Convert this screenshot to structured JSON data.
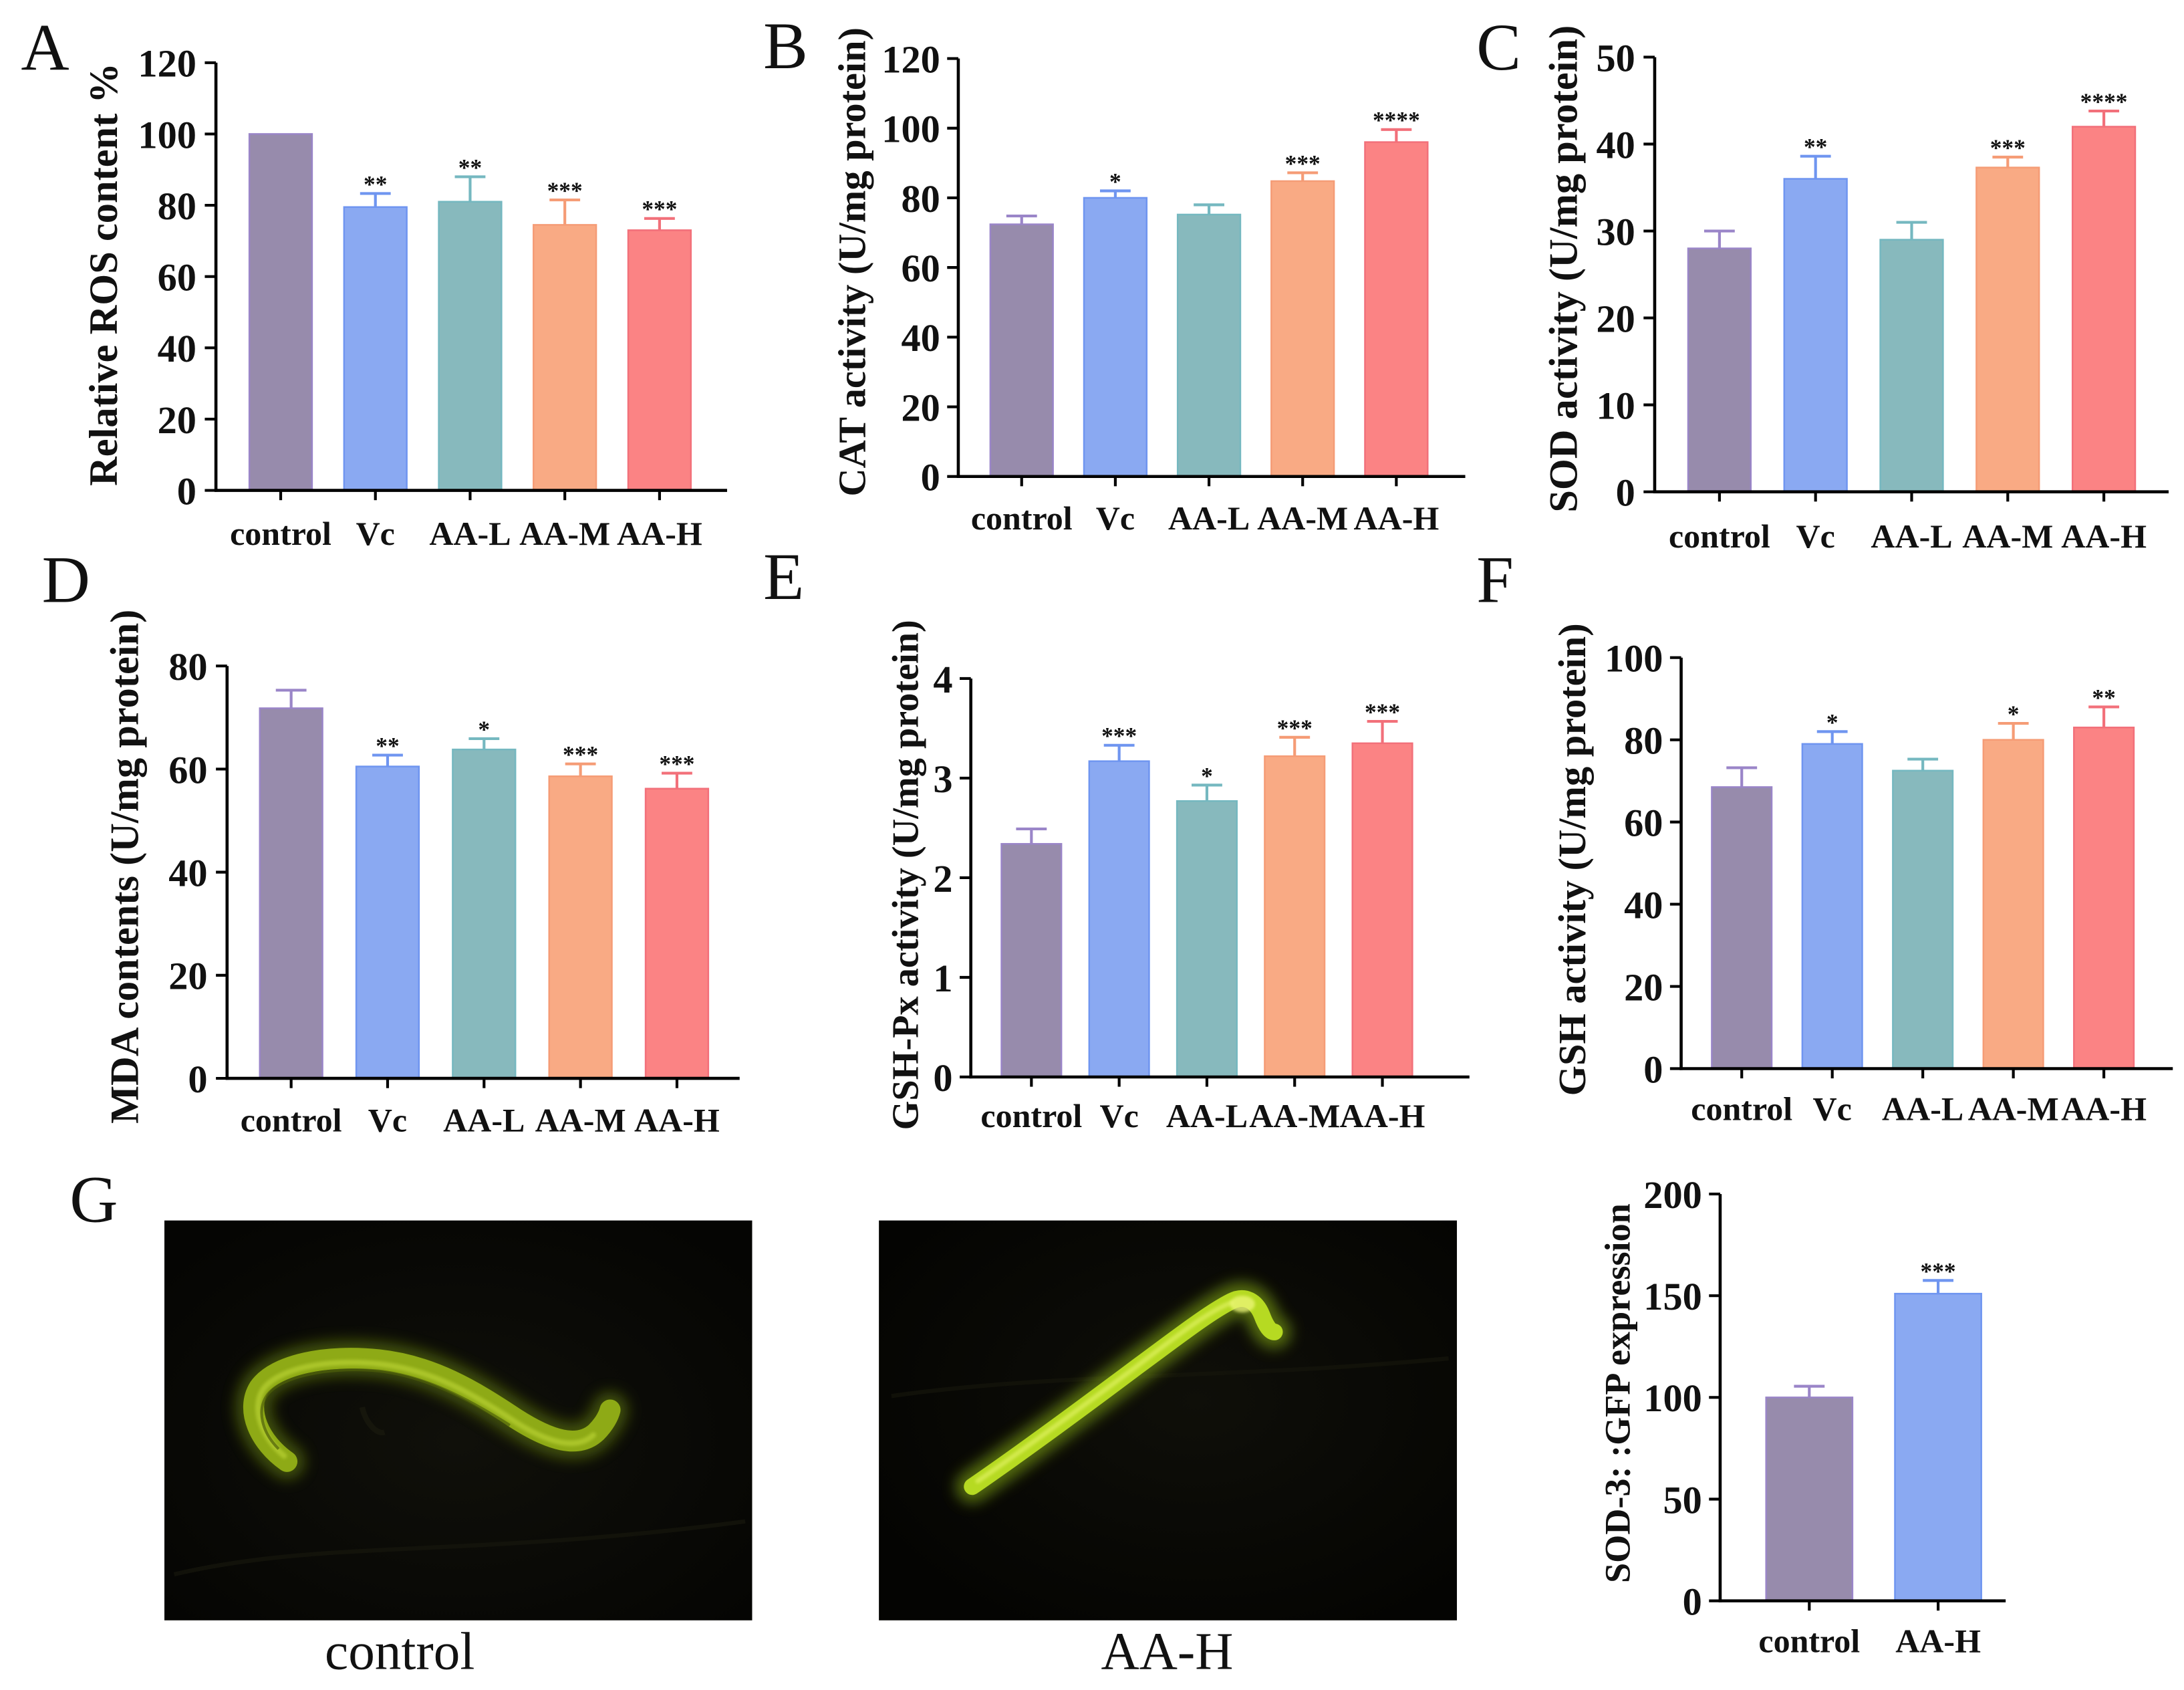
{
  "chart_data": [
    {
      "panel": "A",
      "type": "bar",
      "categories": [
        "control",
        "Vc",
        "AA-L",
        "AA-M",
        "AA-H"
      ],
      "values": [
        100,
        79.5,
        81,
        74.5,
        73
      ],
      "errors": [
        0,
        3.8,
        7,
        7,
        3.3
      ],
      "significance": [
        null,
        "**",
        "**",
        "***",
        "***"
      ],
      "ylabel": "Relative ROS content %",
      "ylim": [
        0,
        120
      ],
      "yticks": [
        0,
        20,
        40,
        60,
        80,
        100,
        120
      ],
      "colors": [
        "#978BAC",
        "#8AA9F2",
        "#87B9BD",
        "#F9AA84",
        "#FB8384"
      ],
      "error_colors": [
        "#9A85C8",
        "#6F95F0",
        "#75B8C0",
        "#F59C76",
        "#F2707A"
      ]
    },
    {
      "panel": "B",
      "type": "bar",
      "categories": [
        "control",
        "Vc",
        "AA-L",
        "AA-M",
        "AA-H"
      ],
      "values": [
        72.4,
        80,
        75.2,
        84.8,
        96
      ],
      "errors": [
        2.4,
        2,
        2.8,
        2.4,
        3.6
      ],
      "significance": [
        null,
        "*",
        null,
        "***",
        "****"
      ],
      "ylabel": "CAT activity (U/mg protein)",
      "ylim": [
        0,
        120
      ],
      "yticks": [
        0,
        20,
        40,
        60,
        80,
        100,
        120
      ],
      "colors": [
        "#978BAC",
        "#8AA9F2",
        "#87B9BD",
        "#F9AA84",
        "#FB8384"
      ],
      "error_colors": [
        "#9A85C8",
        "#6F95F0",
        "#75B8C0",
        "#F59C76",
        "#F2707A"
      ]
    },
    {
      "panel": "C",
      "type": "bar",
      "categories": [
        "control",
        "Vc",
        "AA-L",
        "AA-M",
        "AA-H"
      ],
      "values": [
        28,
        36,
        29,
        37.3,
        42
      ],
      "errors": [
        2,
        2.6,
        2,
        1.2,
        1.8
      ],
      "significance": [
        null,
        "**",
        null,
        "***",
        "****"
      ],
      "ylabel": "SOD activity (U/mg protein)",
      "ylim": [
        0,
        50
      ],
      "yticks": [
        0,
        10,
        20,
        30,
        40,
        50
      ],
      "colors": [
        "#978BAC",
        "#8AA9F2",
        "#87B9BD",
        "#F9AA84",
        "#FB8384"
      ],
      "error_colors": [
        "#9A85C8",
        "#6F95F0",
        "#75B8C0",
        "#F59C76",
        "#F2707A"
      ]
    },
    {
      "panel": "D",
      "type": "bar",
      "categories": [
        "control",
        "Vc",
        "AA-L",
        "AA-M",
        "AA-H"
      ],
      "values": [
        71.8,
        60.5,
        63.8,
        58.6,
        56.2
      ],
      "errors": [
        3.5,
        2.2,
        2.1,
        2.4,
        3
      ],
      "significance": [
        null,
        "**",
        "*",
        "***",
        "***"
      ],
      "ylabel": "MDA contents (U/mg protein)",
      "ylim": [
        0,
        80
      ],
      "yticks": [
        0,
        20,
        40,
        60,
        80
      ],
      "colors": [
        "#978BAC",
        "#8AA9F2",
        "#87B9BD",
        "#F9AA84",
        "#FB8384"
      ],
      "error_colors": [
        "#9A85C8",
        "#6F95F0",
        "#75B8C0",
        "#F59C76",
        "#F2707A"
      ]
    },
    {
      "panel": "E",
      "type": "bar",
      "categories": [
        "control",
        "Vc",
        "AA-L",
        "AA-M",
        "AA-H"
      ],
      "values": [
        2.34,
        3.17,
        2.77,
        3.22,
        3.35
      ],
      "errors": [
        0.15,
        0.16,
        0.16,
        0.19,
        0.22
      ],
      "significance": [
        null,
        "***",
        "*",
        "***",
        "***"
      ],
      "ylabel": "GSH-Px activity (U/mg protein)",
      "ylim": [
        0,
        4
      ],
      "yticks": [
        0,
        1,
        2,
        3,
        4
      ],
      "colors": [
        "#978BAC",
        "#8AA9F2",
        "#87B9BD",
        "#F9AA84",
        "#FB8384"
      ],
      "error_colors": [
        "#9A85C8",
        "#6F95F0",
        "#75B8C0",
        "#F59C76",
        "#F2707A"
      ]
    },
    {
      "panel": "F",
      "type": "bar",
      "categories": [
        "control",
        "Vc",
        "AA-L",
        "AA-M",
        "AA-H"
      ],
      "values": [
        68.5,
        79,
        72.5,
        80,
        83
      ],
      "errors": [
        4.7,
        3,
        2.8,
        4,
        5
      ],
      "significance": [
        null,
        "*",
        null,
        "*",
        "**"
      ],
      "ylabel": "GSH activity (U/mg protein)",
      "ylim": [
        0,
        100
      ],
      "yticks": [
        0,
        20,
        40,
        60,
        80,
        100
      ],
      "colors": [
        "#978BAC",
        "#8AA9F2",
        "#87B9BD",
        "#F9AA84",
        "#FB8384"
      ],
      "error_colors": [
        "#9A85C8",
        "#6F95F0",
        "#75B8C0",
        "#F59C76",
        "#F2707A"
      ]
    },
    {
      "panel": "G",
      "type": "bar",
      "categories": [
        "control",
        "AA-H"
      ],
      "values": [
        100,
        151
      ],
      "errors": [
        5.5,
        6.5
      ],
      "significance": [
        null,
        "***"
      ],
      "ylabel": "SOD-3: :GFP expression",
      "ylim": [
        0,
        200
      ],
      "yticks": [
        0,
        50,
        100,
        150,
        200
      ],
      "colors": [
        "#978BAC",
        "#8AA9F2"
      ],
      "error_colors": [
        "#9A85C8",
        "#6F95F0"
      ]
    }
  ],
  "micrographs": [
    {
      "label": "control"
    },
    {
      "label": "AA-H"
    }
  ]
}
